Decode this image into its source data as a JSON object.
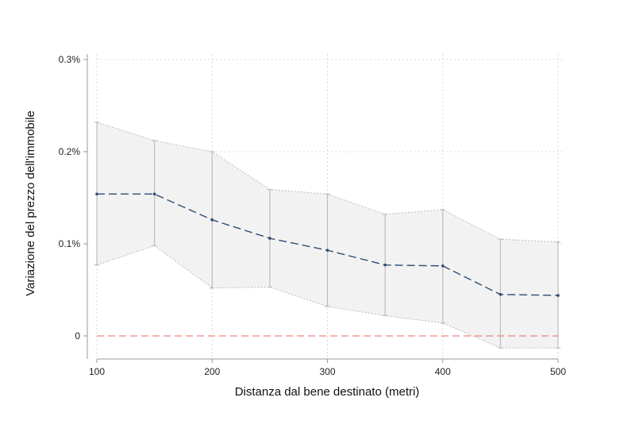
{
  "chart_data": {
    "type": "line",
    "title": "",
    "xlabel": "Distanza dal bene destinato (metri)",
    "ylabel": "Variazione del prezzo dell'immobile",
    "x": [
      100,
      150,
      200,
      250,
      300,
      350,
      400,
      450,
      500
    ],
    "series": [
      {
        "values": [
          0.154,
          0.154,
          0.126,
          0.106,
          0.093,
          0.077,
          0.076,
          0.045,
          0.044
        ],
        "ci_lower": [
          0.077,
          0.098,
          0.052,
          0.053,
          0.032,
          0.022,
          0.014,
          -0.013,
          -0.013
        ],
        "ci_upper": [
          0.232,
          0.212,
          0.2,
          0.159,
          0.154,
          0.132,
          0.137,
          0.105,
          0.102
        ],
        "color": "#2e4d74"
      }
    ],
    "xlim": [
      100,
      500
    ],
    "ylim": [
      -0.02,
      0.3
    ],
    "x_ticks": [
      {
        "value": 100,
        "label": "100"
      },
      {
        "value": 200,
        "label": "200"
      },
      {
        "value": 300,
        "label": "300"
      },
      {
        "value": 400,
        "label": "400"
      },
      {
        "value": 500,
        "label": "500"
      }
    ],
    "y_ticks": [
      {
        "value": 0,
        "label": "0"
      },
      {
        "value": 0.1,
        "label": "0.1%"
      },
      {
        "value": 0.2,
        "label": "0.2%"
      },
      {
        "value": 0.3,
        "label": "0.3%"
      }
    ],
    "reference_line": {
      "y": 0,
      "color": "#f08080"
    },
    "grid": true,
    "colors": {
      "ci_fill": "#f2f2f2",
      "ci_border": "#bdbdbd",
      "whisker": "#bdbdbd",
      "grid": "#d9d9d9",
      "axis": "#999999"
    }
  }
}
